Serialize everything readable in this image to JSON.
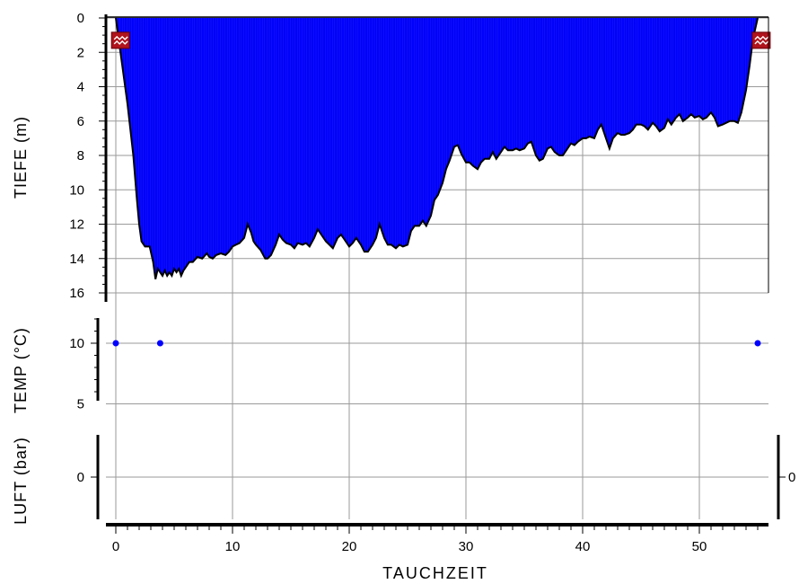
{
  "chart_data": {
    "type": "area",
    "xlabel": "TAUCHZEIT",
    "xlim": [
      0,
      55
    ],
    "x_ticks": [
      "0",
      "10",
      "20",
      "30",
      "40",
      "50"
    ],
    "grid": true,
    "panels": [
      {
        "name": "depth",
        "ylabel": "TIEFE (m)",
        "ylim": [
          0,
          16
        ],
        "y_inverted": true,
        "y_ticks": [
          "0",
          "2",
          "4",
          "6",
          "8",
          "10",
          "12",
          "14",
          "16"
        ],
        "fill_color": "#0000ff",
        "series": [
          {
            "x": [
              0,
              0.3,
              0.6,
              1,
              1.5,
              1.8,
              2,
              2.2,
              2.5,
              2.9,
              3.2,
              3.4,
              3.6,
              3.8,
              4,
              4.2,
              4.4,
              4.6,
              4.8,
              5,
              5.2,
              5.4,
              5.6,
              5.8,
              6,
              6.3,
              6.6,
              7,
              7.4,
              7.8,
              8,
              8.3,
              8.6,
              9,
              9.4,
              9.7,
              10,
              10.3,
              10.6,
              11,
              11.3,
              11.6,
              11.8,
              12,
              12.4,
              12.8,
              13,
              13.3,
              13.7,
              14,
              14.3,
              14.6,
              15,
              15.3,
              15.6,
              16,
              16.3,
              16.6,
              17,
              17.3,
              17.6,
              18,
              18.3,
              18.6,
              19,
              19.3,
              19.6,
              20,
              20.3,
              20.6,
              21,
              21.3,
              21.6,
              22,
              22.3,
              22.6,
              23,
              23.3,
              23.6,
              24,
              24.3,
              24.6,
              25,
              25.3,
              25.6,
              26,
              26.3,
              26.6,
              27,
              27.3,
              27.6,
              28,
              28.3,
              28.6,
              29,
              29.3,
              29.6,
              30,
              30.3,
              30.6,
              31,
              31.3,
              31.6,
              32,
              32.3,
              32.6,
              33,
              33.3,
              33.6,
              34,
              34.3,
              34.6,
              35,
              35.3,
              35.6,
              36,
              36.3,
              36.6,
              37,
              37.3,
              37.6,
              38,
              38.3,
              38.6,
              39,
              39.3,
              39.6,
              40,
              40.3,
              40.6,
              41,
              41.3,
              41.6,
              42,
              42.3,
              42.6,
              43,
              43.3,
              43.6,
              44,
              44.3,
              44.6,
              45,
              45.3,
              45.6,
              46,
              46.3,
              46.6,
              47,
              47.3,
              47.6,
              48,
              48.3,
              48.6,
              49,
              49.3,
              49.6,
              50,
              50.3,
              50.6,
              51,
              51.3,
              51.6,
              52,
              52.3,
              52.6,
              53,
              53.3,
              53.6,
              54,
              54.3,
              54.6,
              55
            ],
            "values": [
              0,
              1.5,
              3,
              5,
              8,
              10.5,
              12,
              13,
              13.3,
              13.3,
              14.2,
              15.2,
              14.6,
              14.8,
              15,
              14.7,
              15,
              14.8,
              15,
              14.6,
              14.8,
              14.6,
              15,
              14.7,
              14.5,
              14.2,
              14.2,
              13.9,
              14,
              13.7,
              13.9,
              14,
              13.8,
              13.7,
              13.8,
              13.6,
              13.3,
              13.2,
              13.1,
              12.8,
              12,
              12.5,
              13,
              13.2,
              13.5,
              14,
              14,
              13.8,
              13.2,
              12.6,
              12.9,
              13.1,
              13.2,
              13.4,
              13.1,
              13.2,
              13.1,
              13.3,
              12.8,
              12.3,
              12.6,
              13,
              13.2,
              13.4,
              12.8,
              12.6,
              12.9,
              13.3,
              13.1,
              12.8,
              13.2,
              13.6,
              13.6,
              13.2,
              12.8,
              12,
              12.8,
              13.2,
              13.2,
              13.4,
              13.2,
              13.3,
              13.2,
              12.4,
              12.1,
              12.1,
              11.8,
              12.1,
              11.5,
              10.6,
              10.3,
              9.6,
              8.8,
              8.3,
              7.5,
              7.4,
              7.9,
              8.4,
              8.4,
              8.6,
              8.8,
              8.4,
              8.2,
              8.2,
              7.8,
              8.2,
              7.8,
              7.5,
              7.7,
              7.7,
              7.6,
              7.7,
              7.6,
              7.3,
              7.2,
              8,
              8.3,
              8.2,
              7.6,
              7.5,
              7.8,
              8,
              8,
              7.7,
              7.3,
              7.4,
              7.2,
              7,
              7,
              6.9,
              7,
              6.5,
              6.2,
              7,
              7.6,
              7,
              6.7,
              6.8,
              6.8,
              6.7,
              6.5,
              6.2,
              6.2,
              6.3,
              6.5,
              6.1,
              6.3,
              6.6,
              6.4,
              5.9,
              6.2,
              5.8,
              5.6,
              6,
              5.8,
              5.6,
              5.8,
              5.7,
              5.9,
              5.8,
              5.5,
              5.8,
              6.3,
              6.2,
              6.1,
              6,
              6,
              6.1,
              5.5,
              4.2,
              2.8,
              1.2,
              0
            ],
            "line_color": "#000000"
          }
        ],
        "markers": [
          {
            "x": 0.4,
            "y": 1.3,
            "icon": "surface-warning-icon"
          },
          {
            "x": 55.3,
            "y": 1.3,
            "icon": "surface-warning-icon"
          }
        ]
      },
      {
        "name": "temperature",
        "ylabel": "TEMP (°C)",
        "ylim": [
          3,
          13
        ],
        "y_ticks": [
          "10",
          "5"
        ],
        "point_color": "#0000ff",
        "series": [
          {
            "type": "scatter",
            "x": [
              0,
              3.8,
              55
            ],
            "values": [
              10,
              10,
              10
            ]
          }
        ]
      },
      {
        "name": "air",
        "ylabel": "LUFT (bar)",
        "y_ticks": [
          "0"
        ],
        "right_tick_label": "0",
        "series": []
      }
    ]
  }
}
